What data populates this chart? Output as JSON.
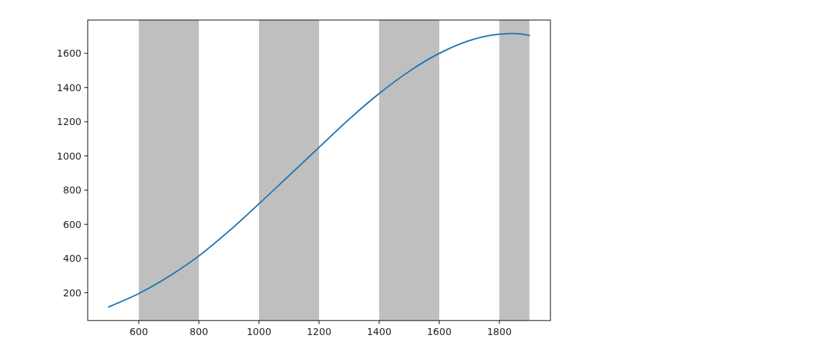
{
  "chart_data": {
    "type": "line",
    "x": [
      500,
      600,
      700,
      800,
      900,
      1000,
      1100,
      1200,
      1300,
      1400,
      1500,
      1600,
      1700,
      1800,
      1850,
      1900
    ],
    "series": [
      {
        "color": "#1f77b4",
        "values": [
          117,
          195,
          295,
          415,
          560,
          720,
          885,
          1050,
          1215,
          1365,
          1495,
          1600,
          1675,
          1712,
          1716,
          1705
        ]
      }
    ],
    "xlim": [
      430,
      1970
    ],
    "ylim": [
      37,
      1795
    ],
    "xticks": [
      600,
      800,
      1000,
      1200,
      1400,
      1600,
      1800
    ],
    "yticks": [
      200,
      400,
      600,
      800,
      1000,
      1200,
      1400,
      1600
    ],
    "bands": [
      {
        "axis": "x",
        "from": 600,
        "to": 800,
        "color": "#bfbfbf"
      },
      {
        "axis": "x",
        "from": 1000,
        "to": 1200,
        "color": "#bfbfbf"
      },
      {
        "axis": "x",
        "from": 1400,
        "to": 1600,
        "color": "#bfbfbf"
      },
      {
        "axis": "x",
        "from": 1800,
        "to": 1900,
        "color": "#bfbfbf"
      }
    ],
    "grid": false
  }
}
